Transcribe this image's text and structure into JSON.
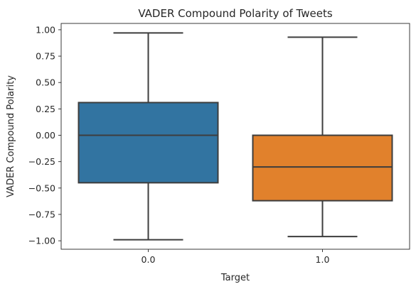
{
  "chart_data": {
    "type": "boxplot",
    "title": "VADER Compound Polarity of Tweets",
    "xlabel": "Target",
    "ylabel": "VADER Compound Polarity",
    "categories": [
      "0.0",
      "1.0"
    ],
    "ylim": [
      -1.08,
      1.06
    ],
    "yticks": [
      1.0,
      0.75,
      0.5,
      0.25,
      0.0,
      -0.25,
      -0.5,
      -0.75,
      -1.0
    ],
    "ytick_labels": [
      "1.00",
      "0.75",
      "0.50",
      "0.25",
      "0.00",
      "−0.25",
      "−0.50",
      "−0.75",
      "−1.00"
    ],
    "grid": false,
    "legend": "none",
    "boxes": [
      {
        "category": "0.0",
        "whisker_low": -0.99,
        "q1": -0.45,
        "median": 0.0,
        "q3": 0.31,
        "whisker_high": 0.97,
        "color": "#3274a1"
      },
      {
        "category": "1.0",
        "whisker_low": -0.96,
        "q1": -0.62,
        "median": -0.3,
        "q3": 0.0,
        "whisker_high": 0.93,
        "color": "#e1812c"
      }
    ]
  }
}
